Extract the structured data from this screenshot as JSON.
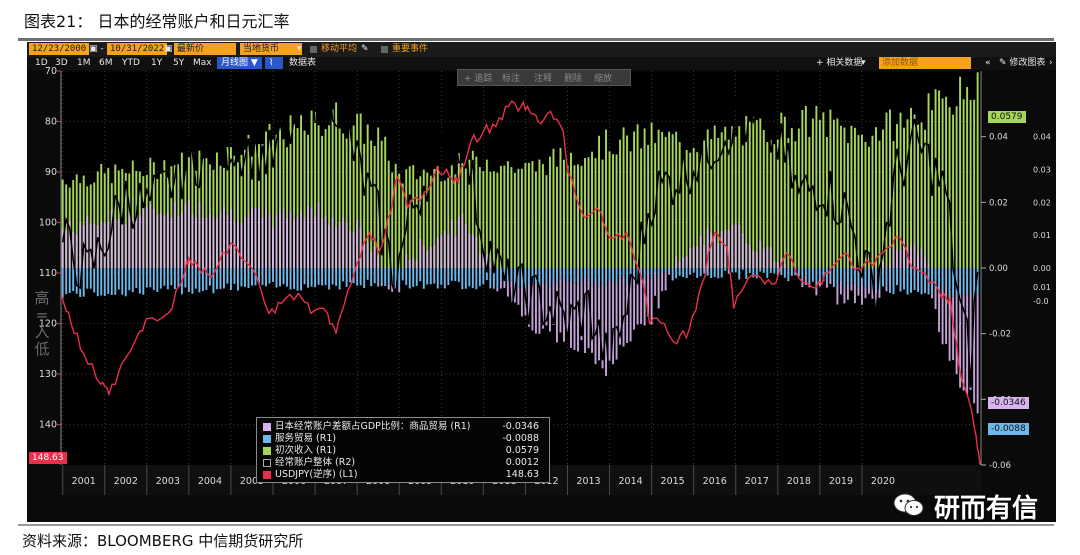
{
  "figure_title": "图表21： 日本的经常账户和日元汇率",
  "source": "资料来源：BLOOMBERG  中信期货研究所",
  "watermark": "研而有信",
  "toolbar": {
    "start_date": "12/23/2000",
    "end_date": "10/31/2022",
    "price_mode": "最新价",
    "currency": "当地货币",
    "moving_avg": "移动平均",
    "key_events": "重要事件",
    "ranges": [
      "1D",
      "3D",
      "1M",
      "6M",
      "YTD",
      "1Y",
      "5Y",
      "Max"
    ],
    "period_button": "月线图",
    "table_label": "数据表",
    "related_data": "+ 相关数据",
    "add_data_placeholder": "添加数据",
    "edit_chart": "修改图表",
    "float_tools": [
      "+ 追踪",
      "标注",
      "注释",
      "删除",
      "缩放"
    ]
  },
  "side_label": "高 = 入低",
  "colors": {
    "goods": "#d8b3ee",
    "services": "#6fb7e8",
    "primary_income": "#a6d659",
    "current_account": "#000000",
    "usdjpy": "#e8304a"
  },
  "chart_data": {
    "type": "bar",
    "x_range": [
      2000.96,
      2022.83
    ],
    "year_labels": [
      "2001",
      "2002",
      "2003",
      "2004",
      "2005",
      "2006",
      "2007",
      "2008",
      "2009",
      "2010",
      "2011",
      "2012",
      "2013",
      "2014",
      "2015",
      "2016",
      "2017",
      "2018",
      "2019",
      "2020"
    ],
    "left_axis": {
      "ticks": [
        70,
        80,
        90,
        100,
        110,
        120,
        130,
        140
      ],
      "range": [
        70,
        148
      ],
      "inverted": true
    },
    "right_axis_r1": {
      "ticks": [
        0.04,
        0.02,
        0.0,
        -0.02,
        -0.04,
        -0.06
      ],
      "tick_labels": [
        "0.04",
        "0.02",
        "0.00",
        "-0.02",
        "-0.04",
        "-0.06"
      ],
      "range": [
        0.06,
        -0.06
      ]
    },
    "right_axis_r2": {
      "ticks": [
        0.004,
        0.003,
        0.002,
        0.001,
        0.0,
        -0.001
      ],
      "tick_labels": [
        "0.04",
        "0.03",
        "0.02",
        "0.01",
        "0.00",
        "-0.0"
      ],
      "extra_label": "0.01",
      "range": [
        0.006,
        -0.006
      ]
    },
    "last_value_labels": {
      "primary_income": "0.0579",
      "goods": "-0.0346",
      "services": "-0.0088",
      "usdjpy": "148.63"
    },
    "series": [
      {
        "name": "日本经常账户差额占GDP比例：商品贸易 (R1)",
        "key": "goods",
        "last": "-0.0346",
        "anchors": [
          [
            2001.0,
            0.0115
          ],
          [
            2002.0,
            0.0148
          ],
          [
            2003.0,
            0.0168
          ],
          [
            2004.0,
            0.0185
          ],
          [
            2005.0,
            0.017
          ],
          [
            2006.0,
            0.015
          ],
          [
            2007.0,
            0.018
          ],
          [
            2008.0,
            0.012
          ],
          [
            2008.8,
            -0.003
          ],
          [
            2009.5,
            0.006
          ],
          [
            2010.5,
            0.014
          ],
          [
            2011.2,
            0.002
          ],
          [
            2012.0,
            -0.01
          ],
          [
            2013.0,
            -0.019
          ],
          [
            2014.0,
            -0.025
          ],
          [
            2015.0,
            -0.011
          ],
          [
            2016.0,
            0.009
          ],
          [
            2017.0,
            0.011
          ],
          [
            2018.0,
            0.003
          ],
          [
            2019.0,
            -0.002
          ],
          [
            2020.3,
            -0.005
          ],
          [
            2020.9,
            0.008
          ],
          [
            2021.5,
            0.005
          ],
          [
            2022.0,
            -0.018
          ],
          [
            2022.8,
            -0.035
          ]
        ]
      },
      {
        "name": "服务贸易 (R1)",
        "key": "services",
        "last": "-0.0088",
        "anchors": [
          [
            2001.0,
            -0.008
          ],
          [
            2005.0,
            -0.006
          ],
          [
            2008.0,
            -0.005
          ],
          [
            2011.0,
            -0.005
          ],
          [
            2014.0,
            -0.004
          ],
          [
            2015.5,
            -0.002
          ],
          [
            2018.0,
            -0.002
          ],
          [
            2020.0,
            -0.006
          ],
          [
            2021.5,
            -0.007
          ],
          [
            2022.8,
            -0.0088
          ]
        ]
      },
      {
        "name": "初次收入 (R1)",
        "key": "primary_income",
        "last": "0.0579",
        "anchors": [
          [
            2001.0,
            0.027
          ],
          [
            2003.0,
            0.03
          ],
          [
            2005.0,
            0.035
          ],
          [
            2006.5,
            0.042
          ],
          [
            2007.5,
            0.046
          ],
          [
            2008.5,
            0.04
          ],
          [
            2009.0,
            0.028
          ],
          [
            2010.0,
            0.03
          ],
          [
            2011.0,
            0.033
          ],
          [
            2012.0,
            0.03
          ],
          [
            2013.0,
            0.034
          ],
          [
            2014.0,
            0.038
          ],
          [
            2015.0,
            0.04
          ],
          [
            2016.0,
            0.038
          ],
          [
            2017.0,
            0.041
          ],
          [
            2018.0,
            0.043
          ],
          [
            2019.0,
            0.045
          ],
          [
            2020.0,
            0.04
          ],
          [
            2021.0,
            0.045
          ],
          [
            2022.0,
            0.05
          ],
          [
            2022.8,
            0.0579
          ]
        ]
      },
      {
        "name": "经常账户整体 (R2)",
        "key": "current_account",
        "last": "0.0012",
        "anchors": [
          [
            2001.0,
            0.0008
          ],
          [
            2001.6,
            -0.0002
          ],
          [
            2002.5,
            0.0022
          ],
          [
            2003.0,
            0.0018
          ],
          [
            2004.0,
            0.0032
          ],
          [
            2005.0,
            0.0038
          ],
          [
            2006.0,
            0.0033
          ],
          [
            2006.9,
            0.0053
          ],
          [
            2007.5,
            0.0052
          ],
          [
            2008.0,
            0.0032
          ],
          [
            2008.5,
            0.0015
          ],
          [
            2008.9,
            -0.0003
          ],
          [
            2009.3,
            0.0018
          ],
          [
            2009.8,
            0.0033
          ],
          [
            2010.5,
            0.004
          ],
          [
            2011.0,
            0.001
          ],
          [
            2011.5,
            -0.0005
          ],
          [
            2012.0,
            -0.0008
          ],
          [
            2012.6,
            -0.0012
          ],
          [
            2013.0,
            -0.0017
          ],
          [
            2013.5,
            -0.0012
          ],
          [
            2014.0,
            -0.003
          ],
          [
            2014.5,
            -0.0008
          ],
          [
            2015.0,
            0.0022
          ],
          [
            2016.0,
            0.0032
          ],
          [
            2017.0,
            0.0045
          ],
          [
            2017.6,
            0.0042
          ],
          [
            2018.0,
            0.0038
          ],
          [
            2018.5,
            0.0022
          ],
          [
            2019.0,
            0.0026
          ],
          [
            2019.6,
            0.0018
          ],
          [
            2020.3,
            -0.0008
          ],
          [
            2020.8,
            0.0028
          ],
          [
            2021.3,
            0.0038
          ],
          [
            2021.7,
            0.003
          ],
          [
            2022.0,
            0.0022
          ],
          [
            2022.3,
            -0.001
          ],
          [
            2022.6,
            -0.003
          ],
          [
            2022.8,
            0.0012
          ]
        ]
      },
      {
        "name": "USDJPY(逆序) (L1)",
        "key": "usdjpy",
        "last": "148.63",
        "points": [
          [
            2000.96,
            114
          ],
          [
            2001.2,
            120
          ],
          [
            2001.5,
            126
          ],
          [
            2001.9,
            132
          ],
          [
            2002.1,
            134
          ],
          [
            2002.4,
            128
          ],
          [
            2002.8,
            122
          ],
          [
            2003.0,
            119
          ],
          [
            2003.5,
            118
          ],
          [
            2003.9,
            110
          ],
          [
            2004.0,
            107
          ],
          [
            2004.3,
            110
          ],
          [
            2004.6,
            110
          ],
          [
            2005.0,
            104
          ],
          [
            2005.5,
            109
          ],
          [
            2005.9,
            118
          ],
          [
            2006.2,
            116
          ],
          [
            2006.6,
            114
          ],
          [
            2006.9,
            118
          ],
          [
            2007.3,
            118
          ],
          [
            2007.5,
            122
          ],
          [
            2007.7,
            116
          ],
          [
            2008.0,
            108
          ],
          [
            2008.3,
            102
          ],
          [
            2008.5,
            106
          ],
          [
            2008.8,
            98
          ],
          [
            2008.95,
            91
          ],
          [
            2009.2,
            97
          ],
          [
            2009.6,
            94
          ],
          [
            2009.9,
            89
          ],
          [
            2010.2,
            91
          ],
          [
            2010.4,
            92
          ],
          [
            2010.7,
            84
          ],
          [
            2011.0,
            82
          ],
          [
            2011.3,
            81
          ],
          [
            2011.6,
            77
          ],
          [
            2011.9,
            77
          ],
          [
            2012.1,
            78
          ],
          [
            2012.3,
            80
          ],
          [
            2012.6,
            78
          ],
          [
            2012.9,
            82
          ],
          [
            2013.0,
            90
          ],
          [
            2013.4,
            99
          ],
          [
            2013.8,
            98
          ],
          [
            2014.0,
            103
          ],
          [
            2014.4,
            102
          ],
          [
            2014.8,
            112
          ],
          [
            2014.95,
            120
          ],
          [
            2015.3,
            120
          ],
          [
            2015.6,
            124
          ],
          [
            2015.9,
            121
          ],
          [
            2016.2,
            112
          ],
          [
            2016.5,
            102
          ],
          [
            2016.8,
            105
          ],
          [
            2016.95,
            117
          ],
          [
            2017.3,
            111
          ],
          [
            2017.6,
            111
          ],
          [
            2017.95,
            112
          ],
          [
            2018.2,
            106
          ],
          [
            2018.5,
            111
          ],
          [
            2018.9,
            113
          ],
          [
            2019.2,
            110
          ],
          [
            2019.6,
            106
          ],
          [
            2019.9,
            109
          ],
          [
            2020.2,
            108
          ],
          [
            2020.5,
            106
          ],
          [
            2020.9,
            103
          ],
          [
            2021.2,
            109
          ],
          [
            2021.5,
            110
          ],
          [
            2021.9,
            115
          ],
          [
            2022.1,
            115
          ],
          [
            2022.3,
            128
          ],
          [
            2022.6,
            137
          ],
          [
            2022.75,
            145
          ],
          [
            2022.83,
            148.63
          ]
        ]
      }
    ]
  }
}
